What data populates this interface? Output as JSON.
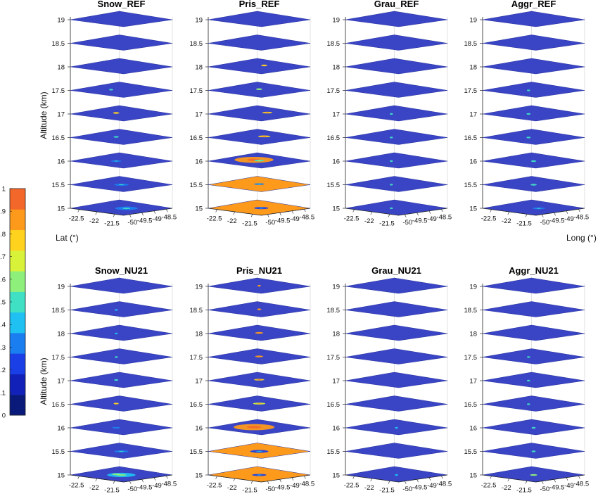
{
  "figure": {
    "y_label": "Altitude (km)",
    "lat_label": "Lat (°)",
    "lon_label": "Long (°)"
  },
  "colors": {
    "background": "#ffffff",
    "layer_base": "#3a45c6",
    "grid": "#cfcfcf",
    "axis": "#222222"
  },
  "colorbar": {
    "min": 0,
    "max": 1,
    "tick_labels": [
      "0",
      "0.1",
      "0.2",
      "0.3",
      "0.4",
      "0.5",
      "0.6",
      "0.7",
      "0.8",
      "0.9",
      "1"
    ],
    "colors": [
      "#0a1a7a",
      "#1222b8",
      "#1b3fe6",
      "#1a7ef0",
      "#1fc0f2",
      "#3fe0c4",
      "#8ef07a",
      "#d8f23a",
      "#ffd21e",
      "#fd9a1c",
      "#f4672a"
    ]
  },
  "chart_data": [
    {
      "type": "heatmap",
      "title": "Snow_REF",
      "show_ylabel": true,
      "show_lat": true,
      "show_lon": false,
      "altitude_ticks": [
        "15",
        "15.5",
        "16",
        "16.5",
        "17",
        "17.5",
        "18",
        "18.5",
        "19"
      ],
      "lat_ticks": [
        "-22.5",
        "-22",
        "-21.5"
      ],
      "lon_ticks": [
        "-50",
        "-49.5",
        "-49",
        "-48.5"
      ],
      "layers": [
        {
          "altitude": 15,
          "background_value": 0.2,
          "features": [
            {
              "u": 0.55,
              "v": 0.5,
              "size": 0.22,
              "value": 0.3
            }
          ]
        },
        {
          "altitude": 15.5,
          "background_value": 0.2,
          "features": [
            {
              "u": 0.5,
              "v": 0.5,
              "size": 0.14,
              "value": 0.3
            }
          ]
        },
        {
          "altitude": 16,
          "background_value": 0.2,
          "features": [
            {
              "u": 0.45,
              "v": 0.5,
              "size": 0.1,
              "value": 0.3
            }
          ]
        },
        {
          "altitude": 16.5,
          "background_value": 0.2,
          "features": [
            {
              "u": 0.45,
              "v": 0.45,
              "size": 0.05,
              "value": 0.5
            }
          ]
        },
        {
          "altitude": 17,
          "background_value": 0.2,
          "features": [
            {
              "u": 0.45,
              "v": 0.42,
              "size": 0.06,
              "value": 0.8
            }
          ]
        },
        {
          "altitude": 17.5,
          "background_value": 0.2,
          "features": [
            {
              "u": 0.4,
              "v": 0.45,
              "size": 0.04,
              "value": 0.5
            }
          ]
        },
        {
          "altitude": 18,
          "background_value": 0.2,
          "features": []
        },
        {
          "altitude": 18.5,
          "background_value": 0.2,
          "features": []
        },
        {
          "altitude": 19,
          "background_value": 0.2,
          "features": []
        }
      ]
    },
    {
      "type": "heatmap",
      "title": "Pris_REF",
      "show_ylabel": false,
      "show_lat": false,
      "show_lon": false,
      "altitude_ticks": [
        "15",
        "15.5",
        "16",
        "16.5",
        "17",
        "17.5",
        "18",
        "18.5",
        "19"
      ],
      "lat_ticks": [
        "-22.5",
        "-22",
        "-21.5"
      ],
      "lon_ticks": [
        "-50",
        "-49.5",
        "-49",
        "-48.5"
      ],
      "layers": [
        {
          "altitude": 15,
          "background_value": 0.9,
          "features": [
            {
              "u": 0.52,
              "v": 0.48,
              "size": 0.14,
              "value": 0.2
            }
          ]
        },
        {
          "altitude": 15.5,
          "background_value": 0.9,
          "features": [
            {
              "u": 0.5,
              "v": 0.45,
              "size": 0.1,
              "value": 0.3
            }
          ]
        },
        {
          "altitude": 16,
          "background_value": 0.2,
          "features": [
            {
              "u": 0.45,
              "v": 0.4,
              "size": 0.38,
              "value": 0.9
            },
            {
              "u": 0.5,
              "v": 0.45,
              "size": 0.1,
              "value": 0.5
            }
          ]
        },
        {
          "altitude": 16.5,
          "background_value": 0.2,
          "features": [
            {
              "u": 0.55,
              "v": 0.4,
              "size": 0.12,
              "value": 0.8
            }
          ]
        },
        {
          "altitude": 17,
          "background_value": 0.2,
          "features": [
            {
              "u": 0.58,
              "v": 0.38,
              "size": 0.1,
              "value": 0.8
            }
          ]
        },
        {
          "altitude": 17.5,
          "background_value": 0.2,
          "features": [
            {
              "u": 0.5,
              "v": 0.4,
              "size": 0.06,
              "value": 0.6
            }
          ]
        },
        {
          "altitude": 18,
          "background_value": 0.2,
          "features": [
            {
              "u": 0.55,
              "v": 0.38,
              "size": 0.06,
              "value": 0.8
            }
          ]
        },
        {
          "altitude": 18.5,
          "background_value": 0.2,
          "features": []
        },
        {
          "altitude": 19,
          "background_value": 0.2,
          "features": []
        }
      ]
    },
    {
      "type": "heatmap",
      "title": "Grau_REF",
      "show_ylabel": false,
      "show_lat": false,
      "show_lon": false,
      "altitude_ticks": [
        "15",
        "15.5",
        "16",
        "16.5",
        "17",
        "17.5",
        "18",
        "18.5",
        "19"
      ],
      "lat_ticks": [
        "-22.5",
        "-22",
        "-21.5"
      ],
      "lon_ticks": [
        "-50",
        "-49.5",
        "-49",
        "-48.5"
      ],
      "layers": [
        {
          "altitude": 15,
          "background_value": 0.2,
          "features": [
            {
              "u": 0.45,
              "v": 0.5,
              "size": 0.03,
              "value": 0.5
            }
          ]
        },
        {
          "altitude": 15.5,
          "background_value": 0.2,
          "features": [
            {
              "u": 0.45,
              "v": 0.5,
              "size": 0.03,
              "value": 0.5
            }
          ]
        },
        {
          "altitude": 16,
          "background_value": 0.2,
          "features": [
            {
              "u": 0.45,
              "v": 0.5,
              "size": 0.03,
              "value": 0.5
            }
          ]
        },
        {
          "altitude": 16.5,
          "background_value": 0.2,
          "features": [
            {
              "u": 0.45,
              "v": 0.5,
              "size": 0.02,
              "value": 0.5
            }
          ]
        },
        {
          "altitude": 17,
          "background_value": 0.2,
          "features": [
            {
              "u": 0.45,
              "v": 0.5,
              "size": 0.02,
              "value": 0.5
            }
          ]
        },
        {
          "altitude": 17.5,
          "background_value": 0.2,
          "features": []
        },
        {
          "altitude": 18,
          "background_value": 0.2,
          "features": []
        },
        {
          "altitude": 18.5,
          "background_value": 0.2,
          "features": []
        },
        {
          "altitude": 19,
          "background_value": 0.2,
          "features": []
        }
      ]
    },
    {
      "type": "heatmap",
      "title": "Aggr_REF",
      "show_ylabel": false,
      "show_lat": false,
      "show_lon": true,
      "altitude_ticks": [
        "15",
        "15.5",
        "16",
        "16.5",
        "17",
        "17.5",
        "18",
        "18.5",
        "19"
      ],
      "lat_ticks": [
        "-22.5",
        "-22",
        "-21.5"
      ],
      "lon_ticks": [
        "-50",
        "-49.5",
        "-49",
        "-48.5"
      ],
      "layers": [
        {
          "altitude": 15,
          "background_value": 0.2,
          "features": [
            {
              "u": 0.55,
              "v": 0.5,
              "size": 0.12,
              "value": 0.3
            }
          ]
        },
        {
          "altitude": 15.5,
          "background_value": 0.2,
          "features": [
            {
              "u": 0.5,
              "v": 0.5,
              "size": 0.06,
              "value": 0.5
            }
          ]
        },
        {
          "altitude": 16,
          "background_value": 0.2,
          "features": [
            {
              "u": 0.5,
              "v": 0.5,
              "size": 0.05,
              "value": 0.5
            }
          ]
        },
        {
          "altitude": 16.5,
          "background_value": 0.2,
          "features": [
            {
              "u": 0.45,
              "v": 0.5,
              "size": 0.04,
              "value": 0.5
            }
          ]
        },
        {
          "altitude": 17,
          "background_value": 0.2,
          "features": [
            {
              "u": 0.45,
              "v": 0.5,
              "size": 0.04,
              "value": 0.5
            }
          ]
        },
        {
          "altitude": 17.5,
          "background_value": 0.2,
          "features": [
            {
              "u": 0.45,
              "v": 0.5,
              "size": 0.02,
              "value": 0.5
            }
          ]
        },
        {
          "altitude": 18,
          "background_value": 0.2,
          "features": []
        },
        {
          "altitude": 18.5,
          "background_value": 0.2,
          "features": []
        },
        {
          "altitude": 19,
          "background_value": 0.2,
          "features": []
        }
      ]
    },
    {
      "type": "heatmap",
      "title": "Snow_NU21",
      "show_ylabel": true,
      "show_lat": false,
      "show_lon": false,
      "altitude_ticks": [
        "15",
        "15.5",
        "16",
        "16.5",
        "17",
        "17.5",
        "18",
        "18.5",
        "19"
      ],
      "lat_ticks": [
        "-22.5",
        "-22",
        "-21.5"
      ],
      "lon_ticks": [
        "-50",
        "-49.5",
        "-49",
        "-48.5"
      ],
      "layers": [
        {
          "altitude": 15,
          "background_value": 0.2,
          "features": [
            {
              "u": 0.5,
              "v": 0.5,
              "size": 0.28,
              "value": 0.4
            },
            {
              "u": 0.45,
              "v": 0.45,
              "size": 0.08,
              "value": 0.6
            }
          ]
        },
        {
          "altitude": 15.5,
          "background_value": 0.2,
          "features": [
            {
              "u": 0.5,
              "v": 0.5,
              "size": 0.14,
              "value": 0.3
            }
          ]
        },
        {
          "altitude": 16,
          "background_value": 0.2,
          "features": [
            {
              "u": 0.45,
              "v": 0.5,
              "size": 0.08,
              "value": 0.3
            }
          ]
        },
        {
          "altitude": 16.5,
          "background_value": 0.2,
          "features": [
            {
              "u": 0.45,
              "v": 0.45,
              "size": 0.05,
              "value": 0.8
            }
          ]
        },
        {
          "altitude": 17,
          "background_value": 0.2,
          "features": [
            {
              "u": 0.45,
              "v": 0.45,
              "size": 0.04,
              "value": 0.5
            }
          ]
        },
        {
          "altitude": 17.5,
          "background_value": 0.2,
          "features": [
            {
              "u": 0.45,
              "v": 0.5,
              "size": 0.02,
              "value": 0.5
            }
          ]
        },
        {
          "altitude": 18,
          "background_value": 0.2,
          "features": [
            {
              "u": 0.45,
              "v": 0.5,
              "size": 0.02,
              "value": 0.4
            }
          ]
        },
        {
          "altitude": 18.5,
          "background_value": 0.2,
          "features": [
            {
              "u": 0.45,
              "v": 0.5,
              "size": 0.02,
              "value": 0.4
            }
          ]
        },
        {
          "altitude": 19,
          "background_value": 0.2,
          "features": []
        }
      ]
    },
    {
      "type": "heatmap",
      "title": "Pris_NU21",
      "show_ylabel": false,
      "show_lat": false,
      "show_lon": false,
      "altitude_ticks": [
        "15",
        "15.5",
        "16",
        "16.5",
        "17",
        "17.5",
        "18",
        "18.5",
        "19"
      ],
      "lat_ticks": [
        "-22.5",
        "-22",
        "-21.5"
      ],
      "lon_ticks": [
        "-50",
        "-49.5",
        "-49",
        "-48.5"
      ],
      "layers": [
        {
          "altitude": 15,
          "background_value": 0.9,
          "features": [
            {
              "u": 0.5,
              "v": 0.5,
              "size": 0.14,
              "value": 0.2
            }
          ]
        },
        {
          "altitude": 15.5,
          "background_value": 0.9,
          "features": [
            {
              "u": 0.5,
              "v": 0.5,
              "size": 0.18,
              "value": 0.2
            }
          ]
        },
        {
          "altitude": 16,
          "background_value": 0.2,
          "features": [
            {
              "u": 0.45,
              "v": 0.45,
              "size": 0.4,
              "value": 0.9
            }
          ]
        },
        {
          "altitude": 16.5,
          "background_value": 0.2,
          "features": [
            {
              "u": 0.5,
              "v": 0.45,
              "size": 0.12,
              "value": 0.7
            }
          ]
        },
        {
          "altitude": 17,
          "background_value": 0.2,
          "features": [
            {
              "u": 0.5,
              "v": 0.42,
              "size": 0.1,
              "value": 0.8
            }
          ]
        },
        {
          "altitude": 17.5,
          "background_value": 0.2,
          "features": [
            {
              "u": 0.5,
              "v": 0.45,
              "size": 0.08,
              "value": 0.9
            }
          ]
        },
        {
          "altitude": 18,
          "background_value": 0.2,
          "features": [
            {
              "u": 0.5,
              "v": 0.45,
              "size": 0.08,
              "value": 0.9
            }
          ]
        },
        {
          "altitude": 18.5,
          "background_value": 0.2,
          "features": [
            {
              "u": 0.5,
              "v": 0.45,
              "size": 0.04,
              "value": 0.9
            }
          ]
        },
        {
          "altitude": 19,
          "background_value": 0.2,
          "features": [
            {
              "u": 0.5,
              "v": 0.45,
              "size": 0.02,
              "value": 0.9
            }
          ]
        }
      ]
    },
    {
      "type": "heatmap",
      "title": "Grau_NU21",
      "show_ylabel": false,
      "show_lat": false,
      "show_lon": false,
      "altitude_ticks": [
        "15",
        "15.5",
        "16",
        "16.5",
        "17",
        "17.5",
        "18",
        "18.5",
        "19"
      ],
      "lat_ticks": [
        "-22.5",
        "-22",
        "-21.5"
      ],
      "lon_ticks": [
        "-50",
        "-49.5",
        "-49",
        "-48.5"
      ],
      "layers": [
        {
          "altitude": 15,
          "background_value": 0.2,
          "features": [
            {
              "u": 0.5,
              "v": 0.5,
              "size": 0.03,
              "value": 0.4
            }
          ]
        },
        {
          "altitude": 15.5,
          "background_value": 0.2,
          "features": []
        },
        {
          "altitude": 16,
          "background_value": 0.2,
          "features": [
            {
              "u": 0.5,
              "v": 0.5,
              "size": 0.02,
              "value": 0.4
            }
          ]
        },
        {
          "altitude": 16.5,
          "background_value": 0.2,
          "features": []
        },
        {
          "altitude": 17,
          "background_value": 0.2,
          "features": []
        },
        {
          "altitude": 17.5,
          "background_value": 0.2,
          "features": []
        },
        {
          "altitude": 18,
          "background_value": 0.2,
          "features": []
        },
        {
          "altitude": 18.5,
          "background_value": 0.2,
          "features": []
        },
        {
          "altitude": 19,
          "background_value": 0.2,
          "features": []
        }
      ]
    },
    {
      "type": "heatmap",
      "title": "Aggr_NU21",
      "show_ylabel": false,
      "show_lat": false,
      "show_lon": false,
      "altitude_ticks": [
        "15",
        "15.5",
        "16",
        "16.5",
        "17",
        "17.5",
        "18",
        "18.5",
        "19"
      ],
      "lat_ticks": [
        "-22.5",
        "-22",
        "-21.5"
      ],
      "lon_ticks": [
        "-50",
        "-49.5",
        "-49",
        "-48.5"
      ],
      "layers": [
        {
          "altitude": 15,
          "background_value": 0.2,
          "features": [
            {
              "u": 0.5,
              "v": 0.5,
              "size": 0.07,
              "value": 0.6
            }
          ]
        },
        {
          "altitude": 15.5,
          "background_value": 0.2,
          "features": [
            {
              "u": 0.5,
              "v": 0.5,
              "size": 0.04,
              "value": 0.5
            }
          ]
        },
        {
          "altitude": 16,
          "background_value": 0.2,
          "features": [
            {
              "u": 0.5,
              "v": 0.5,
              "size": 0.04,
              "value": 0.5
            }
          ]
        },
        {
          "altitude": 16.5,
          "background_value": 0.2,
          "features": [
            {
              "u": 0.45,
              "v": 0.5,
              "size": 0.03,
              "value": 0.5
            }
          ]
        },
        {
          "altitude": 17,
          "background_value": 0.2,
          "features": [
            {
              "u": 0.45,
              "v": 0.5,
              "size": 0.03,
              "value": 0.5
            }
          ]
        },
        {
          "altitude": 17.5,
          "background_value": 0.2,
          "features": [
            {
              "u": 0.45,
              "v": 0.5,
              "size": 0.02,
              "value": 0.5
            }
          ]
        },
        {
          "altitude": 18,
          "background_value": 0.2,
          "features": []
        },
        {
          "altitude": 18.5,
          "background_value": 0.2,
          "features": []
        },
        {
          "altitude": 19,
          "background_value": 0.2,
          "features": []
        }
      ]
    }
  ]
}
